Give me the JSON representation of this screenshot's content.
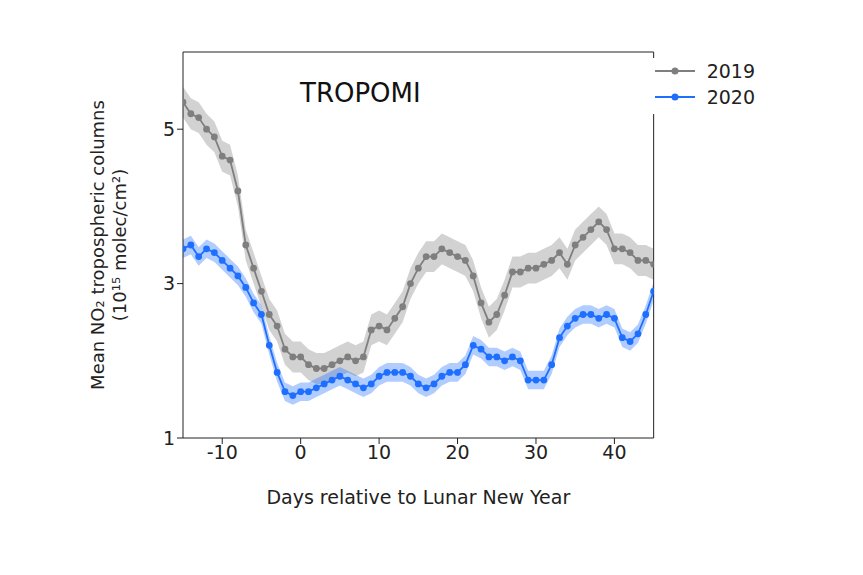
{
  "chart_data": {
    "type": "line",
    "annotation": "TROPOMI",
    "x_label": "Days relative to Lunar New Year",
    "y_label": "Mean NO₂ tropospheric columns (10¹⁵ molec/cm²)",
    "x": [
      -15,
      -14,
      -13,
      -12,
      -11,
      -10,
      -9,
      -8,
      -7,
      -6,
      -5,
      -4,
      -3,
      -2,
      -1,
      0,
      1,
      2,
      3,
      4,
      5,
      6,
      7,
      8,
      9,
      10,
      11,
      12,
      13,
      14,
      15,
      16,
      17,
      18,
      19,
      20,
      21,
      22,
      23,
      24,
      25,
      26,
      27,
      28,
      29,
      30,
      31,
      32,
      33,
      34,
      35,
      36,
      37,
      38,
      39,
      40,
      41,
      42,
      43,
      44,
      45
    ],
    "series": [
      {
        "name": "2019",
        "color": "#7f7f7f",
        "marker": "circle",
        "error": 0.2,
        "values": [
          5.35,
          5.2,
          5.15,
          5.0,
          4.9,
          4.65,
          4.6,
          4.2,
          3.5,
          3.2,
          2.9,
          2.6,
          2.45,
          2.15,
          2.05,
          2.05,
          1.95,
          1.9,
          1.9,
          1.95,
          2.0,
          2.05,
          2.0,
          2.05,
          2.4,
          2.45,
          2.4,
          2.55,
          2.7,
          3.0,
          3.2,
          3.35,
          3.35,
          3.45,
          3.4,
          3.35,
          3.3,
          3.1,
          2.75,
          2.5,
          2.6,
          2.85,
          3.15,
          3.15,
          3.2,
          3.2,
          3.25,
          3.3,
          3.4,
          3.25,
          3.5,
          3.6,
          3.7,
          3.8,
          3.7,
          3.45,
          3.45,
          3.4,
          3.3,
          3.3,
          3.25
        ]
      },
      {
        "name": "2020",
        "color": "#1f6fff",
        "marker": "circle",
        "error": 0.12,
        "values": [
          3.45,
          3.5,
          3.35,
          3.45,
          3.4,
          3.3,
          3.2,
          3.1,
          2.95,
          2.75,
          2.6,
          2.2,
          1.85,
          1.6,
          1.55,
          1.6,
          1.6,
          1.65,
          1.7,
          1.75,
          1.8,
          1.75,
          1.7,
          1.65,
          1.7,
          1.8,
          1.85,
          1.85,
          1.85,
          1.8,
          1.7,
          1.65,
          1.7,
          1.8,
          1.85,
          1.85,
          1.95,
          2.2,
          2.15,
          2.05,
          2.05,
          2.0,
          2.05,
          2.0,
          1.75,
          1.75,
          1.75,
          1.95,
          2.3,
          2.45,
          2.55,
          2.6,
          2.6,
          2.55,
          2.6,
          2.55,
          2.3,
          2.25,
          2.35,
          2.6,
          2.9
        ]
      }
    ],
    "xlim": [
      -15,
      45
    ],
    "ylim": [
      1,
      6
    ],
    "xticks": [
      -10,
      0,
      10,
      20,
      30,
      40
    ],
    "yticks": [
      1,
      3,
      5
    ],
    "grid": false,
    "legend": "upper right"
  }
}
